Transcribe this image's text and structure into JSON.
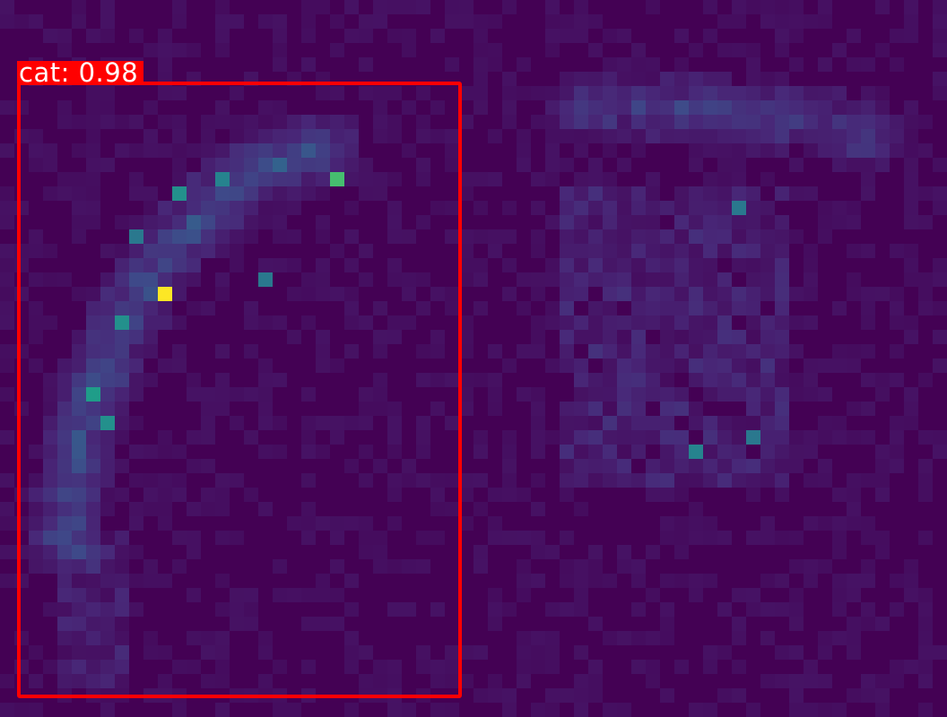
{
  "colors": {
    "background": "#440154",
    "box": "#ff0000",
    "label_text": "#ffffff",
    "colormap": "viridis"
  },
  "detection": {
    "class": "cat",
    "score": "0.98",
    "label": "cat: 0.98"
  }
}
